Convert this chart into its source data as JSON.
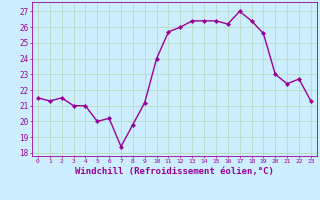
{
  "x": [
    0,
    1,
    2,
    3,
    4,
    5,
    6,
    7,
    8,
    9,
    10,
    11,
    12,
    13,
    14,
    15,
    16,
    17,
    18,
    19,
    20,
    21,
    22,
    23
  ],
  "y": [
    21.5,
    21.3,
    21.5,
    21.0,
    21.0,
    20.0,
    20.2,
    18.4,
    19.8,
    21.2,
    24.0,
    25.7,
    26.0,
    26.4,
    26.4,
    26.4,
    26.2,
    27.0,
    26.4,
    25.6,
    23.0,
    22.4,
    22.7,
    21.3
  ],
  "line_color": "#990099",
  "marker": "D",
  "marker_size": 2.0,
  "linewidth": 1.0,
  "xlabel": "Windchill (Refroidissement éolien,°C)",
  "xlabel_fontsize": 6.5,
  "xtick_labels": [
    "0",
    "1",
    "2",
    "3",
    "4",
    "5",
    "6",
    "7",
    "8",
    "9",
    "10",
    "11",
    "12",
    "13",
    "14",
    "15",
    "16",
    "17",
    "18",
    "19",
    "20",
    "21",
    "22",
    "23"
  ],
  "ytick_labels": [
    "18",
    "19",
    "20",
    "21",
    "22",
    "23",
    "24",
    "25",
    "26",
    "27"
  ],
  "ylim": [
    17.8,
    27.6
  ],
  "xlim": [
    -0.5,
    23.5
  ],
  "bg_color": "#cceeff",
  "grid_color": "#bbddcc",
  "tick_color": "#990099",
  "label_color": "#990099"
}
